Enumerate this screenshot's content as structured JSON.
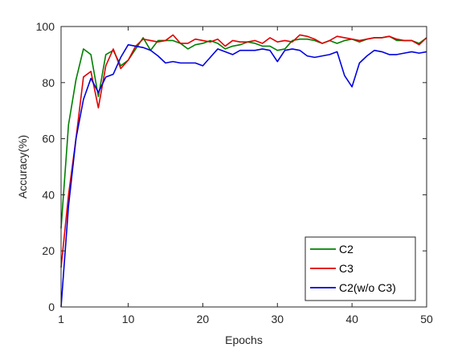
{
  "chart_data": {
    "type": "line",
    "title": "",
    "xlabel": "Epochs",
    "ylabel": "Accuracy(%)",
    "xlim": [
      1,
      50
    ],
    "ylim": [
      0,
      100
    ],
    "xticks": [
      1,
      10,
      20,
      30,
      40,
      50
    ],
    "yticks": [
      0,
      20,
      40,
      60,
      80,
      100
    ],
    "grid": false,
    "legend_position": "bottom-right",
    "x": [
      1,
      2,
      3,
      4,
      5,
      6,
      7,
      8,
      9,
      10,
      11,
      12,
      13,
      14,
      15,
      16,
      17,
      18,
      19,
      20,
      21,
      22,
      23,
      24,
      25,
      26,
      27,
      28,
      29,
      30,
      31,
      32,
      33,
      34,
      35,
      36,
      37,
      38,
      39,
      40,
      41,
      42,
      43,
      44,
      45,
      46,
      47,
      48,
      49,
      50
    ],
    "series": [
      {
        "name": "C2",
        "color": "#008000",
        "values": [
          28,
          65,
          81,
          92,
          90,
          75,
          90,
          91.5,
          86,
          88,
          92,
          96,
          91.5,
          95,
          95,
          95,
          94,
          92,
          93.5,
          94,
          95,
          94,
          92,
          93,
          93.5,
          94.5,
          94,
          93,
          93,
          91.5,
          92,
          95,
          95.5,
          95.5,
          95,
          94,
          95,
          94,
          95,
          95.5,
          94.5,
          95.5,
          96,
          96,
          96.5,
          95,
          95,
          95,
          94,
          96
        ]
      },
      {
        "name": "C3",
        "color": "#e00000",
        "values": [
          14,
          40,
          60,
          82,
          84,
          71,
          86,
          92,
          85,
          88,
          93,
          95.5,
          95,
          94.5,
          95,
          97,
          94,
          94,
          95.5,
          95,
          94.5,
          95.5,
          93,
          95,
          94.5,
          94.5,
          95,
          94,
          96,
          94.5,
          95,
          94.5,
          97,
          96.5,
          95.5,
          94,
          95,
          96.5,
          96,
          95.5,
          95,
          95.5,
          96,
          96,
          96.5,
          95.5,
          95,
          95,
          93.5,
          96
        ]
      },
      {
        "name": "C2(w/o C3)",
        "color": "#0000e0",
        "values": [
          0,
          36,
          60,
          74,
          81.5,
          76.5,
          82,
          83,
          89,
          93.5,
          93,
          92.5,
          91.5,
          89.5,
          87,
          87.5,
          87,
          87,
          87,
          86,
          89,
          92,
          91,
          90,
          91.5,
          91.5,
          91.5,
          92,
          91.5,
          87.5,
          91.5,
          92,
          91.5,
          89.5,
          89,
          89.5,
          90,
          91,
          82.5,
          78.5,
          87,
          89.5,
          91.5,
          91,
          90,
          90,
          90.5,
          91,
          90.5,
          91
        ]
      }
    ]
  }
}
